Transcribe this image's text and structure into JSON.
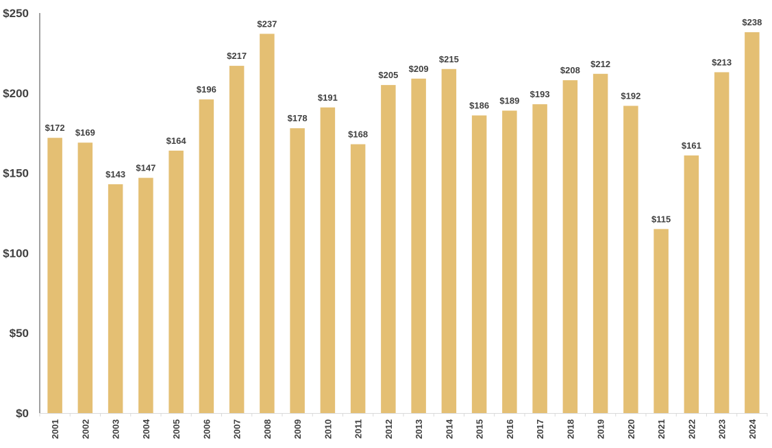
{
  "chart_data": {
    "type": "bar",
    "title": "",
    "xlabel": "",
    "ylabel": "",
    "categories": [
      "2001",
      "2002",
      "2003",
      "2004",
      "2005",
      "2006",
      "2007",
      "2008",
      "2009",
      "2010",
      "2011",
      "2012",
      "2013",
      "2014",
      "2015",
      "2016",
      "2017",
      "2018",
      "2019",
      "2020",
      "2021",
      "2022",
      "2023",
      "2024"
    ],
    "values": [
      172,
      169,
      143,
      147,
      164,
      196,
      217,
      237,
      178,
      191,
      168,
      205,
      209,
      215,
      186,
      189,
      193,
      208,
      212,
      192,
      115,
      161,
      213,
      238
    ],
    "data_labels": [
      "$172",
      "$169",
      "$143",
      "$147",
      "$164",
      "$196",
      "$217",
      "$237",
      "$178",
      "$191",
      "$168",
      "$205",
      "$209",
      "$215",
      "$186",
      "$189",
      "$193",
      "$208",
      "$212",
      "$192",
      "$115",
      "$161",
      "$213",
      "$238"
    ],
    "ylim": [
      0,
      250
    ],
    "yticks": [
      0,
      50,
      100,
      150,
      200,
      250
    ],
    "ytick_labels": [
      "$0",
      "$50",
      "$100",
      "$150",
      "$200",
      "$250"
    ],
    "grid": false,
    "legend": "none",
    "bar_color": "#E4BF73",
    "text_color": "#404040",
    "axis_color": "#404040"
  }
}
